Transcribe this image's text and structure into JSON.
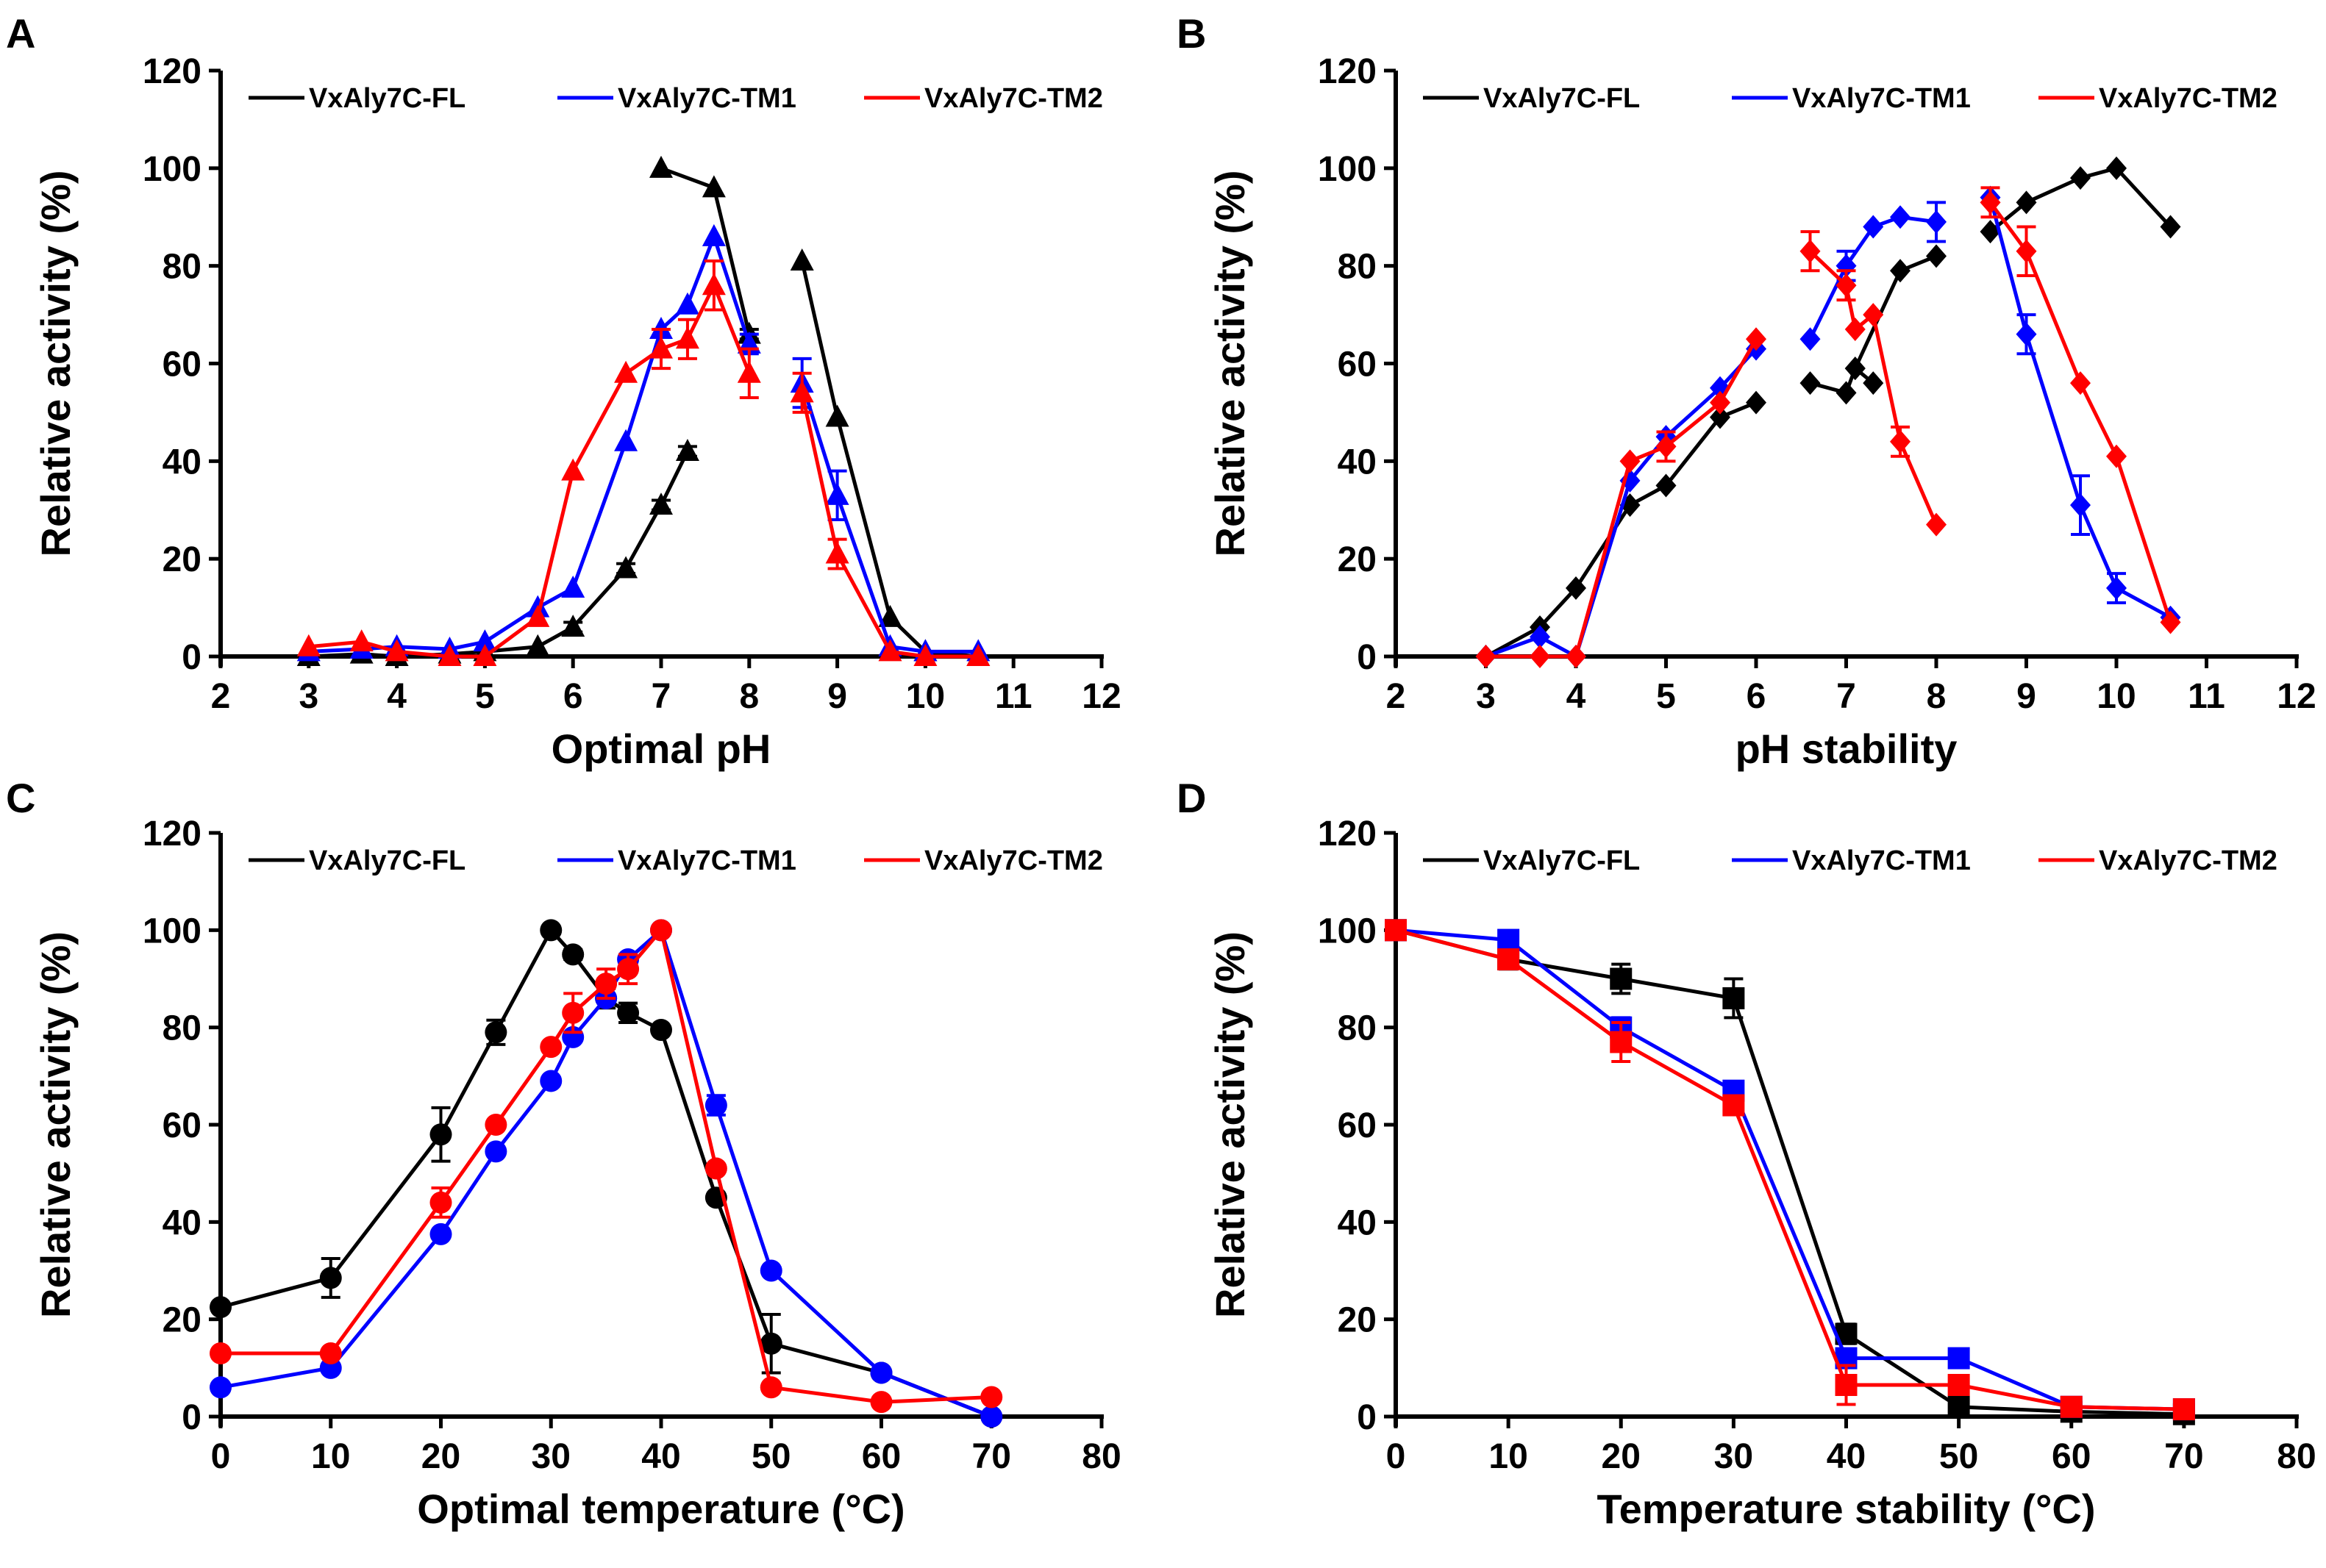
{
  "chart_data": [
    {
      "panel": "A",
      "type": "line",
      "marker": "triangle",
      "xlabel": "Optimal pH",
      "ylabel": "Relative activity (%)",
      "xlim": [
        2,
        12
      ],
      "ylim": [
        0,
        120
      ],
      "xticks": [
        2,
        3,
        4,
        5,
        6,
        7,
        8,
        9,
        10,
        11,
        12
      ],
      "yticks": [
        0,
        20,
        40,
        60,
        80,
        100,
        120
      ],
      "legend": [
        "VxAly7C-FL",
        "VxAly7C-TM1",
        "VxAly7C-TM2"
      ],
      "series": [
        {
          "name": "VxAly7C-FL",
          "color": "#000000",
          "segments": [
            {
              "x": [
                3,
                3.6,
                4,
                4.6,
                5,
                5.6,
                6,
                6.6,
                7,
                7.3
              ],
              "y": [
                0,
                0.5,
                0,
                0.5,
                1,
                2,
                6,
                18,
                31,
                42
              ],
              "err": [
                0,
                0,
                0,
                0,
                0,
                0,
                1,
                1,
                1,
                1
              ]
            },
            {
              "x": [
                7,
                7.6,
                8
              ],
              "y": [
                100,
                96,
                66
              ],
              "err": [
                0,
                0,
                1
              ]
            },
            {
              "x": [
                8.6,
                9,
                9.6,
                10,
                10.6
              ],
              "y": [
                81,
                49,
                8,
                1,
                0
              ],
              "err": [
                0,
                0,
                0,
                0,
                0
              ]
            }
          ]
        },
        {
          "name": "VxAly7C-TM1",
          "color": "#0000FF",
          "segments": [
            {
              "x": [
                3,
                3.6,
                4,
                4.6,
                5,
                5.6,
                6,
                6.6,
                7,
                7.3,
                7.6,
                8
              ],
              "y": [
                1,
                1.5,
                2,
                1.5,
                3,
                10,
                14,
                44,
                67,
                72,
                86,
                64
              ],
              "err": [
                0,
                0,
                0,
                0,
                0,
                0,
                0,
                0,
                0,
                0,
                0,
                2
              ]
            },
            {
              "x": [
                8.6,
                9,
                9.6,
                10,
                10.6
              ],
              "y": [
                56,
                33,
                2,
                1,
                1
              ],
              "err": [
                5,
                5,
                0,
                0,
                0
              ]
            }
          ]
        },
        {
          "name": "VxAly7C-TM2",
          "color": "#FF0000",
          "segments": [
            {
              "x": [
                3,
                3.6,
                4,
                4.6,
                5,
                5.6,
                6,
                6.6,
                7,
                7.3,
                7.6,
                8
              ],
              "y": [
                2,
                3,
                1,
                0,
                0,
                8,
                38,
                58,
                63,
                65,
                76,
                58
              ],
              "err": [
                0,
                0,
                0,
                0,
                0,
                0,
                0,
                0,
                4,
                4,
                5,
                5
              ]
            },
            {
              "x": [
                8.6,
                9,
                9.6,
                10,
                10.6
              ],
              "y": [
                54,
                21,
                1,
                0,
                0
              ],
              "err": [
                4,
                3,
                0,
                0,
                0
              ]
            }
          ]
        }
      ]
    },
    {
      "panel": "B",
      "type": "line",
      "marker": "diamond",
      "xlabel": "pH stability",
      "ylabel": "Relative activity (%)",
      "xlim": [
        2,
        12
      ],
      "ylim": [
        0,
        120
      ],
      "xticks": [
        2,
        3,
        4,
        5,
        6,
        7,
        8,
        9,
        10,
        11,
        12
      ],
      "yticks": [
        0,
        20,
        40,
        60,
        80,
        100,
        120
      ],
      "legend": [
        "VxAly7C-FL",
        "VxAly7C-TM1",
        "VxAly7C-TM2"
      ],
      "series": [
        {
          "name": "VxAly7C-FL",
          "color": "#000000",
          "segments": [
            {
              "x": [
                3,
                3.6,
                4,
                4.6,
                5,
                5.6,
                6
              ],
              "y": [
                0,
                6,
                14,
                31,
                35,
                49,
                52
              ],
              "err": [
                0,
                0,
                0,
                0,
                0,
                0,
                0
              ]
            },
            {
              "x": [
                6.6,
                7,
                7.1,
                7.3
              ],
              "y": [
                56,
                54,
                59,
                56
              ],
              "err": [
                0,
                0,
                0,
                0
              ]
            },
            {
              "x": [
                7.1,
                7.6,
                8
              ],
              "y": [
                59,
                79,
                82
              ],
              "err": [
                0,
                0,
                0
              ]
            },
            {
              "x": [
                8.6,
                9,
                9.6,
                10,
                10.6
              ],
              "y": [
                87,
                93,
                98,
                100,
                88
              ],
              "err": [
                0,
                0,
                0,
                0,
                0
              ]
            }
          ]
        },
        {
          "name": "VxAly7C-TM1",
          "color": "#0000FF",
          "segments": [
            {
              "x": [
                3,
                3.6,
                4,
                4.6,
                5,
                5.6,
                6
              ],
              "y": [
                0,
                4,
                0,
                36,
                45,
                55,
                63
              ],
              "err": [
                0,
                0,
                0,
                0,
                0,
                0,
                0
              ]
            },
            {
              "x": [
                6.6,
                7,
                7.3,
                7.6,
                8
              ],
              "y": [
                65,
                80,
                88,
                90,
                89
              ],
              "err": [
                0,
                3,
                0,
                0,
                4
              ]
            },
            {
              "x": [
                8.6,
                9,
                9.6,
                10,
                10.6
              ],
              "y": [
                94,
                66,
                31,
                14,
                8
              ],
              "err": [
                0,
                4,
                6,
                3,
                0
              ]
            }
          ]
        },
        {
          "name": "VxAly7C-TM2",
          "color": "#FF0000",
          "segments": [
            {
              "x": [
                3,
                3.6,
                4,
                4.6,
                5,
                5.6,
                6
              ],
              "y": [
                0,
                0,
                0,
                40,
                43,
                52,
                65
              ],
              "err": [
                0,
                0,
                0,
                0,
                3,
                0,
                0
              ]
            },
            {
              "x": [
                6.6,
                7,
                7.1,
                7.3,
                7.6,
                8
              ],
              "y": [
                83,
                76,
                67,
                70,
                44,
                27
              ],
              "err": [
                4,
                3,
                0,
                0,
                3,
                0
              ]
            },
            {
              "x": [
                8.6,
                9,
                9.6,
                10,
                10.6
              ],
              "y": [
                93,
                83,
                56,
                41,
                7
              ],
              "err": [
                3,
                5,
                0,
                0,
                0
              ]
            }
          ]
        }
      ]
    },
    {
      "panel": "C",
      "type": "line",
      "marker": "circle",
      "xlabel": "Optimal temperature (°C)",
      "ylabel": "Relative activity (%)",
      "xlim": [
        0,
        80
      ],
      "ylim": [
        0,
        120
      ],
      "xticks": [
        0,
        10,
        20,
        30,
        40,
        50,
        60,
        70,
        80
      ],
      "yticks": [
        0,
        20,
        40,
        60,
        80,
        100,
        120
      ],
      "legend": [
        "VxAly7C-FL",
        "VxAly7C-TM1",
        "VxAly7C-TM2"
      ],
      "series": [
        {
          "name": "VxAly7C-FL",
          "color": "#000000",
          "segments": [
            {
              "x": [
                0,
                10,
                20,
                25,
                30,
                32,
                35,
                37,
                40,
                45,
                50,
                60,
                70
              ],
              "y": [
                22.5,
                28.5,
                58,
                79,
                100,
                95,
                86,
                83,
                79.5,
                45,
                15,
                9,
                0
              ],
              "err": [
                0,
                4,
                5.5,
                2.5,
                0,
                1,
                2,
                2,
                0,
                0,
                6,
                0,
                0
              ]
            }
          ]
        },
        {
          "name": "VxAly7C-TM1",
          "color": "#0000FF",
          "segments": [
            {
              "x": [
                0,
                10,
                20,
                25,
                30,
                32,
                35,
                37,
                40,
                45,
                50,
                60,
                70
              ],
              "y": [
                6,
                10,
                37.5,
                54.5,
                69,
                78,
                86,
                94,
                100,
                64,
                30,
                9,
                0
              ],
              "err": [
                0,
                0,
                0,
                0,
                0,
                0,
                0,
                0,
                0,
                2,
                0,
                0,
                0
              ]
            }
          ]
        },
        {
          "name": "VxAly7C-TM2",
          "color": "#FF0000",
          "segments": [
            {
              "x": [
                0,
                10,
                20,
                25,
                30,
                32,
                35,
                37,
                40,
                45,
                50,
                60,
                70
              ],
              "y": [
                13,
                13,
                44,
                60,
                76,
                83,
                89,
                92,
                100,
                51,
                6,
                3,
                4
              ],
              "err": [
                0,
                0,
                3,
                0,
                0,
                4,
                3,
                3,
                0,
                0,
                0,
                0,
                0
              ]
            }
          ]
        }
      ]
    },
    {
      "panel": "D",
      "type": "line",
      "marker": "square",
      "xlabel": "Temperature stability (°C)",
      "ylabel": "Relative activity (%)",
      "xlim": [
        0,
        80
      ],
      "ylim": [
        0,
        120
      ],
      "xticks": [
        0,
        10,
        20,
        30,
        40,
        50,
        60,
        70,
        80
      ],
      "yticks": [
        0,
        20,
        40,
        60,
        80,
        100,
        120
      ],
      "legend": [
        "VxAly7C-FL",
        "VxAly7C-TM1",
        "VxAly7C-TM2"
      ],
      "series": [
        {
          "name": "VxAly7C-FL",
          "color": "#000000",
          "segments": [
            {
              "x": [
                0,
                10,
                20,
                30,
                40,
                50,
                60,
                70
              ],
              "y": [
                100,
                94,
                90,
                86,
                17,
                2,
                1,
                0.5
              ],
              "err": [
                0,
                2,
                3,
                4,
                2,
                0,
                0,
                0
              ]
            }
          ]
        },
        {
          "name": "VxAly7C-TM1",
          "color": "#0000FF",
          "segments": [
            {
              "x": [
                0,
                10,
                20,
                30,
                40,
                50,
                60,
                70
              ],
              "y": [
                100,
                98,
                80,
                67,
                12,
                12,
                2,
                1.5
              ],
              "err": [
                0,
                0,
                2,
                0,
                0,
                0,
                0,
                0
              ]
            }
          ]
        },
        {
          "name": "VxAly7C-TM2",
          "color": "#FF0000",
          "segments": [
            {
              "x": [
                0,
                10,
                20,
                30,
                40,
                50,
                60,
                70
              ],
              "y": [
                100,
                94,
                77,
                64,
                6.5,
                6.5,
                2,
                1.5
              ],
              "err": [
                0,
                0,
                4,
                0,
                4,
                0,
                0,
                0
              ]
            }
          ]
        }
      ]
    }
  ]
}
